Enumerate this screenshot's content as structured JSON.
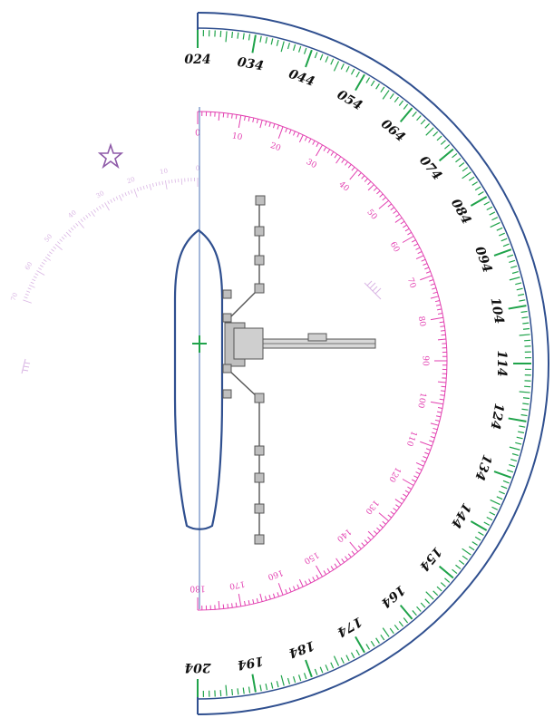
{
  "outer_scale": {
    "labels": [
      "024",
      "034",
      "044",
      "054",
      "064",
      "074",
      "084",
      "094",
      "104",
      "114",
      "124",
      "134",
      "144",
      "154",
      "164",
      "174",
      "184",
      "194",
      "204"
    ],
    "colors": {
      "arc": "#2f4f8f",
      "ticks": "#1fa34a",
      "text": "#111111"
    }
  },
  "inner_scale": {
    "labels": [
      "0",
      "10",
      "20",
      "30",
      "40",
      "50",
      "60",
      "70",
      "80",
      "90",
      "100",
      "110",
      "120",
      "130",
      "140",
      "150",
      "160",
      "170",
      "180"
    ],
    "color": "#e23fb0"
  },
  "faint_scale": {
    "labels": [
      "0",
      "10",
      "20",
      "30",
      "40",
      "50",
      "60",
      "70"
    ],
    "color": "#c996d8"
  },
  "ship": {
    "hull_color": "#2f4f8f",
    "marker_color": "#1fa34a",
    "star_icon": "star-icon"
  },
  "boom": {
    "color": "#555555"
  }
}
